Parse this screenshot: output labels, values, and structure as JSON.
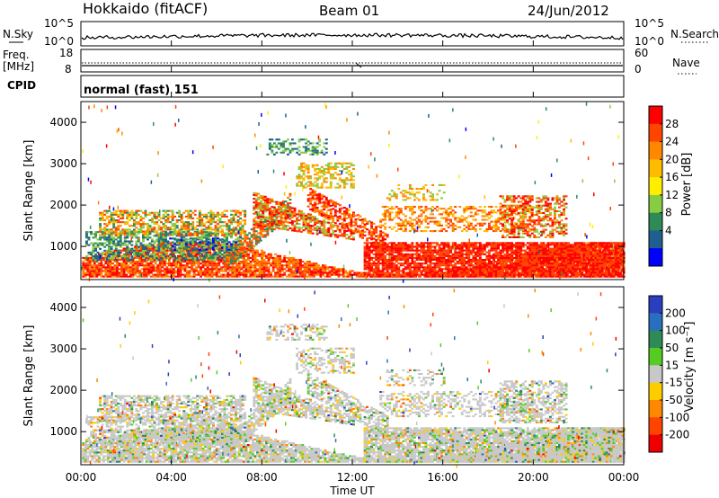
{
  "header": {
    "station": "Hokkaido (fitACF)",
    "beam": "Beam 01",
    "date": "24/Jun/2012"
  },
  "panels": {
    "nsky": {
      "label": "N.Sky",
      "ticks": [
        "10^5",
        "10^0"
      ],
      "right_ticks": [
        "10^5",
        "10^0"
      ],
      "right_label": "N.Search"
    },
    "freq": {
      "label_top": "Freq.",
      "label_unit": "[MHz]",
      "ticks": [
        "18",
        "8"
      ],
      "right_ticks": [
        "60",
        "0"
      ],
      "right_label": "Nave"
    },
    "cpid": {
      "label": "CPID",
      "text": "normal (fast) 151"
    }
  },
  "chart_data": [
    {
      "type": "heatmap",
      "name": "power",
      "ylabel": "Slant Range [km]",
      "yticks": [
        "4000",
        "3000",
        "2000",
        "1000"
      ],
      "ytick_values": [
        4000,
        3000,
        2000,
        1000
      ],
      "ylim": [
        200,
        4500
      ],
      "xlim": [
        0,
        24
      ],
      "colorbar": {
        "label": "Power [dB]",
        "ticks": [
          "28",
          "24",
          "20",
          "16",
          "12",
          "8",
          "4"
        ],
        "colors": [
          "#ff0000",
          "#ff4400",
          "#ff8800",
          "#ffbb00",
          "#ffee00",
          "#88cc44",
          "#2e8b57",
          "#1f5f8f",
          "#0000ff"
        ]
      }
    },
    {
      "type": "heatmap",
      "name": "velocity",
      "ylabel": "Slant Range [km]",
      "yticks": [
        "4000",
        "3000",
        "2000",
        "1000"
      ],
      "ytick_values": [
        4000,
        3000,
        2000,
        1000
      ],
      "ylim": [
        200,
        4500
      ],
      "xlim": [
        0,
        24
      ],
      "colorbar": {
        "label": "Velocity [m s⁻¹]",
        "ticks": [
          "200",
          "100",
          "50",
          "15",
          "-15",
          "-50",
          "-100",
          "-200"
        ],
        "colors": [
          "#2a3fbf",
          "#2a6fbf",
          "#2e8b57",
          "#55cc22",
          "#c8c8c8",
          "#ffcc00",
          "#ff8800",
          "#ff4400",
          "#ee0000"
        ]
      }
    }
  ],
  "xaxis": {
    "label": "Time UT",
    "ticks": [
      "00:00",
      "04:00",
      "08:00",
      "12:00",
      "16:00",
      "20:00",
      "00:00"
    ],
    "tick_hours": [
      0,
      4,
      8,
      12,
      16,
      20,
      24
    ]
  },
  "colors": {
    "axis": "#000000",
    "background": "#ffffff",
    "ground_scatter": "#c8c8c8"
  }
}
